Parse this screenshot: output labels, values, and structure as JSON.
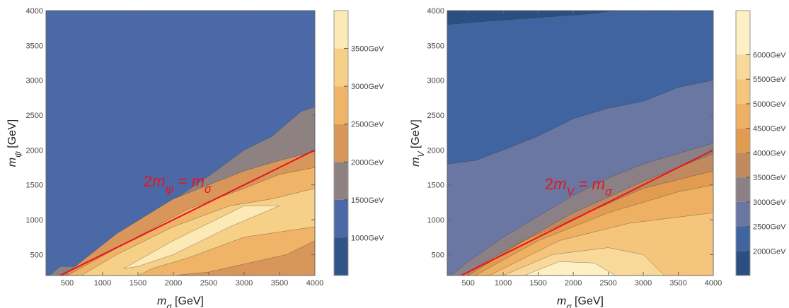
{
  "chart_data": [
    {
      "type": "contour",
      "xlim": [
        200,
        4000
      ],
      "ylim": [
        200,
        4000
      ],
      "xticks": [
        500,
        1000,
        1500,
        2000,
        2500,
        3000,
        3500,
        4000
      ],
      "yticks": [
        500,
        1000,
        1500,
        2000,
        2500,
        3000,
        3500,
        4000
      ],
      "xlabel": [
        {
          "text": "m",
          "style": "italic"
        },
        {
          "text": "σ",
          "style": "sub"
        },
        {
          "text": " [GeV]"
        }
      ],
      "ylabel": [
        {
          "text": "m",
          "style": "italic"
        },
        {
          "text": "ψ",
          "style": "sub"
        },
        {
          "text": " [GeV]"
        }
      ],
      "clim": [
        500,
        4000
      ],
      "levels": [
        500,
        1000,
        1500,
        2000,
        2500,
        3000,
        3500
      ],
      "level_colors": [
        "#2f5588",
        "#4a69a6",
        "#8d8182",
        "#d9965a",
        "#efb468",
        "#f7d087",
        "#fde9b6"
      ],
      "cticks": [
        {
          "value": 1000,
          "label": "1000GeV"
        },
        {
          "value": 1500,
          "label": "1500GeV"
        },
        {
          "value": 2000,
          "label": "2000GeV"
        },
        {
          "value": 2500,
          "label": "2500GeV"
        },
        {
          "value": 3000,
          "label": "3000GeV"
        },
        {
          "value": 3500,
          "label": "3500GeV"
        }
      ],
      "regions": [
        {
          "level": 1000,
          "x": [
            200,
            4000,
            4000,
            200
          ],
          "y": [
            200,
            200,
            4000,
            4000
          ]
        },
        {
          "level": 1500,
          "x": [
            250,
            400,
            850,
            900,
            1250,
            1300,
            1700,
            2100,
            2600,
            3000,
            3400,
            3800,
            4000,
            4000
          ],
          "y": [
            200,
            330,
            330,
            500,
            520,
            800,
            1000,
            1350,
            1700,
            2000,
            2200,
            2550,
            2620,
            200
          ]
        },
        {
          "level": 2000,
          "x": [
            450,
            1200,
            2000,
            3000,
            3500,
            4000,
            4000
          ],
          "y": [
            200,
            800,
            1300,
            1700,
            1850,
            1980,
            200
          ]
        },
        {
          "level": 2500,
          "x": [
            500,
            1300,
            2200,
            3000,
            3500,
            4000,
            4000,
            3600,
            2500,
            2000
          ],
          "y": [
            200,
            650,
            1150,
            1450,
            1650,
            1750,
            700,
            500,
            250,
            200
          ]
        },
        {
          "level": 3000,
          "x": [
            700,
            1200,
            2000,
            2800,
            3400,
            4000,
            4000,
            3000,
            2200,
            1700,
            1500
          ],
          "y": [
            200,
            500,
            900,
            1200,
            1300,
            1450,
            900,
            750,
            450,
            300,
            200
          ]
        },
        {
          "level": 3500,
          "x": [
            1300,
            2000,
            3000,
            3500,
            2800,
            2000,
            1500
          ],
          "y": [
            300,
            700,
            1200,
            1200,
            900,
            500,
            330
          ]
        }
      ],
      "line": {
        "x": [
          400,
          4000
        ],
        "y": [
          200,
          2000
        ],
        "color": "#e8141c"
      },
      "annotation": [
        {
          "text": "2"
        },
        {
          "text": "m",
          "style": "italic"
        },
        {
          "text": "ψ",
          "style": "sub"
        },
        {
          "text": " = "
        },
        {
          "text": "m",
          "style": "italic"
        },
        {
          "text": "σ",
          "style": "sub"
        }
      ]
    },
    {
      "type": "contour",
      "xlim": [
        200,
        4000
      ],
      "ylim": [
        200,
        4000
      ],
      "xticks": [
        500,
        1000,
        1500,
        2000,
        2500,
        3000,
        3500,
        4000
      ],
      "yticks": [
        500,
        1000,
        1500,
        2000,
        2500,
        3000,
        3500,
        4000
      ],
      "xlabel": [
        {
          "text": "m",
          "style": "italic"
        },
        {
          "text": "σ",
          "style": "sub"
        },
        {
          "text": " [GeV]"
        }
      ],
      "ylabel": [
        {
          "text": "m",
          "style": "italic"
        },
        {
          "text": "V",
          "style": "sub"
        },
        {
          "text": " [GeV]"
        }
      ],
      "clim": [
        1500,
        6900
      ],
      "levels": [
        1500,
        2000,
        2500,
        3000,
        3500,
        4000,
        4500,
        5000,
        5500,
        6000
      ],
      "level_colors": [
        "#2a4f80",
        "#3f64a0",
        "#6a77a3",
        "#8a8085",
        "#c08a5e",
        "#e29c52",
        "#eeb164",
        "#f5c57c",
        "#f9d99a",
        "#fdf0c4"
      ],
      "cticks": [
        {
          "value": 2000,
          "label": "2000GeV"
        },
        {
          "value": 2500,
          "label": "2500GeV"
        },
        {
          "value": 3000,
          "label": "3000GeV"
        },
        {
          "value": 3500,
          "label": "3500GeV"
        },
        {
          "value": 4000,
          "label": "4000GeV"
        },
        {
          "value": 4500,
          "label": "4500GeV"
        },
        {
          "value": 5000,
          "label": "5000GeV"
        },
        {
          "value": 5500,
          "label": "5500GeV"
        },
        {
          "value": 6000,
          "label": "6000GeV"
        }
      ],
      "regions": [
        {
          "level": 2000,
          "x": [
            200,
            4000,
            4000,
            200
          ],
          "y": [
            200,
            200,
            4000,
            4000
          ]
        },
        {
          "level": 1500,
          "x": [
            200,
            200,
            800,
            1500,
            2200,
            2600
          ],
          "y": [
            4000,
            3800,
            3850,
            3900,
            3950,
            4000
          ]
        },
        {
          "level": 2500,
          "x": [
            200,
            200,
            600,
            1000,
            1500,
            2000,
            2500,
            3000,
            3500,
            4000,
            4000
          ],
          "y": [
            200,
            1800,
            1850,
            2000,
            2200,
            2450,
            2600,
            2700,
            2900,
            3000,
            200
          ]
        },
        {
          "level": 3000,
          "x": [
            250,
            500,
            1000,
            1500,
            2000,
            2500,
            3000,
            3500,
            4000,
            4000
          ],
          "y": [
            200,
            400,
            750,
            1050,
            1350,
            1600,
            1800,
            1950,
            2100,
            200
          ]
        },
        {
          "level": 3500,
          "x": [
            400,
            1200,
            2000,
            3000,
            4000,
            4000
          ],
          "y": [
            200,
            650,
            1100,
            1550,
            1950,
            200
          ]
        },
        {
          "level": 4000,
          "x": [
            500,
            1300,
            2200,
            3000,
            4000,
            4000
          ],
          "y": [
            200,
            700,
            1100,
            1450,
            1700,
            200
          ]
        },
        {
          "level": 4500,
          "x": [
            600,
            1500,
            2500,
            3500,
            4000,
            4000
          ],
          "y": [
            200,
            700,
            1100,
            1400,
            1500,
            200
          ]
        },
        {
          "level": 5000,
          "x": [
            800,
            1800,
            2800,
            4000,
            4000
          ],
          "y": [
            200,
            700,
            950,
            1100,
            200
          ]
        },
        {
          "level": 5500,
          "x": [
            1000,
            1700,
            2500,
            3000,
            3300
          ],
          "y": [
            200,
            500,
            600,
            500,
            200
          ]
        },
        {
          "level": 6000,
          "x": [
            1300,
            1800,
            2300,
            2600
          ],
          "y": [
            200,
            400,
            380,
            200
          ]
        }
      ],
      "line": {
        "x": [
          400,
          4000
        ],
        "y": [
          200,
          2000
        ],
        "color": "#e8141c"
      },
      "annotation": [
        {
          "text": "2"
        },
        {
          "text": "m",
          "style": "italic"
        },
        {
          "text": "V",
          "style": "sub"
        },
        {
          "text": " = "
        },
        {
          "text": "m",
          "style": "italic"
        },
        {
          "text": "σ",
          "style": "sub"
        }
      ]
    }
  ]
}
